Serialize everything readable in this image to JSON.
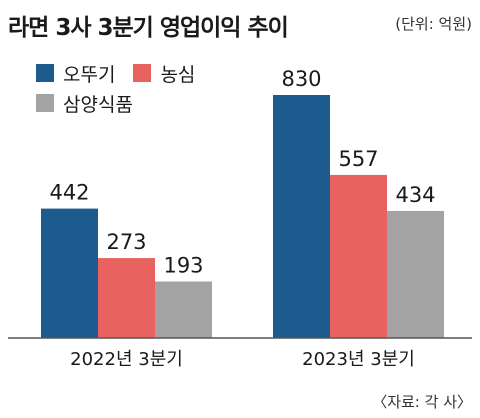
{
  "header": {
    "title": "라면 3사 3분기 영업이익 추이",
    "unit": "(단위: 억원)"
  },
  "source": "〈자료: 각 사〉",
  "colors": {
    "series": [
      "#1d5a8e",
      "#e8625f",
      "#a3a3a3"
    ],
    "axis": "#555555"
  },
  "chart_data": {
    "type": "bar",
    "title": "라면 3사 3분기 영업이익 추이",
    "xlabel": "",
    "ylabel": "",
    "unit": "(단위: 억원)",
    "categories": [
      "2022년 3분기",
      "2023년 3분기"
    ],
    "series": [
      {
        "name": "오뚜기",
        "values": [
          442,
          830
        ]
      },
      {
        "name": "농심",
        "values": [
          273,
          557
        ]
      },
      {
        "name": "삼양식품",
        "values": [
          193,
          434
        ]
      }
    ],
    "ylim": [
      0,
      830
    ],
    "grid": false,
    "legend": "top-left"
  }
}
